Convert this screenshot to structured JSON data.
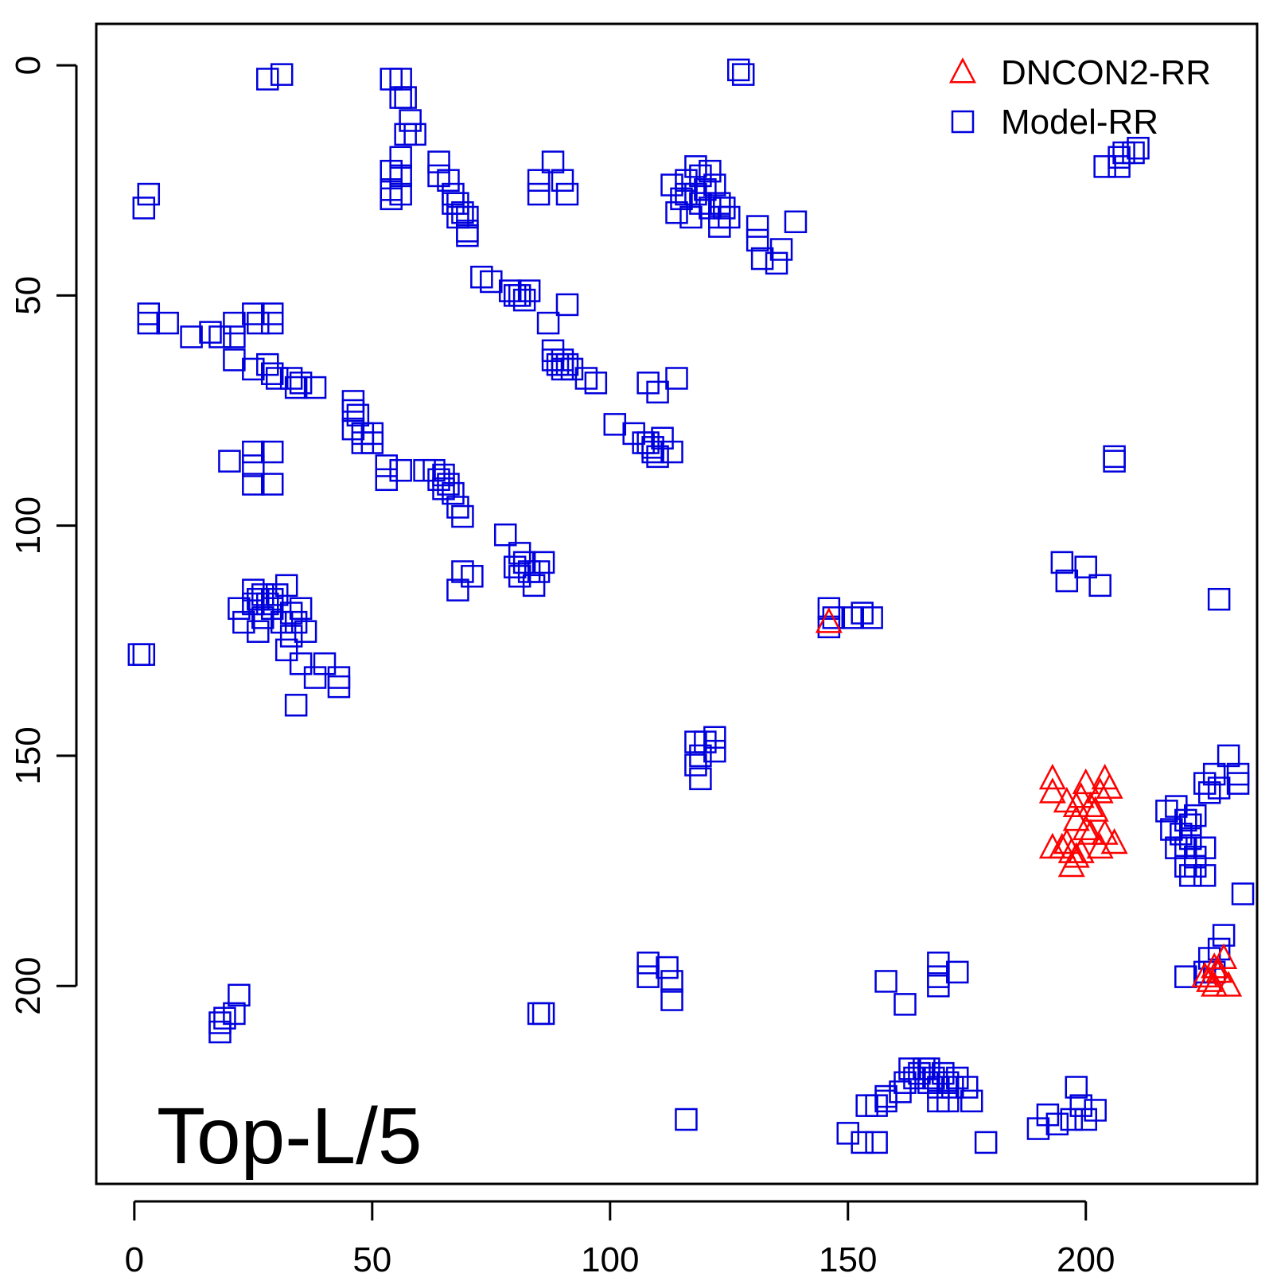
{
  "chart_data": {
    "type": "scatter",
    "title": "",
    "xlabel": "",
    "ylabel": "",
    "xlim": [
      -8,
      236
    ],
    "ylim": [
      -9,
      243
    ],
    "y_axis_reversed": true,
    "x_ticks": [
      0,
      50,
      100,
      150,
      200
    ],
    "y_ticks": [
      0,
      50,
      100,
      150,
      200
    ],
    "grid": false,
    "legend_position": "top-right",
    "panel_label": "Top-L/5",
    "series": [
      {
        "name": "DNCON2-RR",
        "marker": "triangle",
        "color": "#ff0000",
        "points": [
          [
            146,
            121
          ],
          [
            193,
            155
          ],
          [
            193,
            158
          ],
          [
            200,
            156
          ],
          [
            201,
            161
          ],
          [
            203,
            158
          ],
          [
            204,
            155
          ],
          [
            205,
            157
          ],
          [
            196,
            160
          ],
          [
            198,
            161
          ],
          [
            199,
            159
          ],
          [
            202,
            162
          ],
          [
            198,
            164
          ],
          [
            200,
            166
          ],
          [
            204,
            167
          ],
          [
            203,
            170
          ],
          [
            206,
            169
          ],
          [
            193,
            170
          ],
          [
            195,
            170
          ],
          [
            196,
            169
          ],
          [
            197,
            171
          ],
          [
            198,
            172
          ],
          [
            197,
            174
          ],
          [
            199,
            171
          ],
          [
            201,
            167
          ],
          [
            225,
            198
          ],
          [
            226,
            199
          ],
          [
            227,
            196
          ],
          [
            227,
            200
          ],
          [
            228,
            197
          ],
          [
            229,
            194
          ],
          [
            230,
            200
          ]
        ]
      },
      {
        "name": "Model-RR",
        "marker": "square",
        "color": "#0000dd",
        "points": [
          [
            28,
            3
          ],
          [
            31,
            2
          ],
          [
            54,
            3
          ],
          [
            56,
            3
          ],
          [
            56,
            7
          ],
          [
            57,
            7
          ],
          [
            58,
            12
          ],
          [
            59,
            15
          ],
          [
            57,
            15
          ],
          [
            56,
            20
          ],
          [
            54,
            23
          ],
          [
            54,
            27
          ],
          [
            56,
            24
          ],
          [
            56,
            28
          ],
          [
            54,
            29
          ],
          [
            64,
            21
          ],
          [
            64,
            24
          ],
          [
            66,
            25
          ],
          [
            67,
            28
          ],
          [
            67,
            30
          ],
          [
            68,
            30
          ],
          [
            69,
            32
          ],
          [
            68,
            33
          ],
          [
            70,
            33
          ],
          [
            70,
            36
          ],
          [
            70,
            37
          ],
          [
            2,
            31
          ],
          [
            3,
            28
          ],
          [
            127,
            1
          ],
          [
            128,
            2
          ],
          [
            88,
            21
          ],
          [
            85,
            25
          ],
          [
            90,
            25
          ],
          [
            85,
            28
          ],
          [
            91,
            28
          ],
          [
            113,
            26
          ],
          [
            116,
            25
          ],
          [
            118,
            22
          ],
          [
            119,
            24
          ],
          [
            121,
            23
          ],
          [
            116,
            28
          ],
          [
            118,
            28
          ],
          [
            120,
            27
          ],
          [
            122,
            26
          ],
          [
            123,
            30
          ],
          [
            119,
            30
          ],
          [
            115,
            29
          ],
          [
            114,
            32
          ],
          [
            117,
            33
          ],
          [
            121,
            31
          ],
          [
            123,
            33
          ],
          [
            125,
            33
          ],
          [
            124,
            31
          ],
          [
            123,
            35
          ],
          [
            131,
            35
          ],
          [
            131,
            38
          ],
          [
            139,
            34
          ],
          [
            132,
            42
          ],
          [
            135,
            43
          ],
          [
            136,
            40
          ],
          [
            3,
            54
          ],
          [
            3,
            56
          ],
          [
            7,
            56
          ],
          [
            12,
            59
          ],
          [
            16,
            58
          ],
          [
            18,
            59
          ],
          [
            21,
            56
          ],
          [
            21,
            59
          ],
          [
            25,
            54
          ],
          [
            26,
            56
          ],
          [
            29,
            54
          ],
          [
            29,
            56
          ],
          [
            21,
            64
          ],
          [
            25,
            66
          ],
          [
            28,
            65
          ],
          [
            29,
            67
          ],
          [
            30,
            68
          ],
          [
            33,
            68
          ],
          [
            35,
            69
          ],
          [
            34,
            70
          ],
          [
            38,
            70
          ],
          [
            46,
            75
          ],
          [
            46,
            73
          ],
          [
            47,
            76
          ],
          [
            46,
            79
          ],
          [
            48,
            80
          ],
          [
            50,
            80
          ],
          [
            48,
            82
          ],
          [
            50,
            82
          ],
          [
            53,
            87
          ],
          [
            56,
            88
          ],
          [
            53,
            90
          ],
          [
            61,
            88
          ],
          [
            63,
            88
          ],
          [
            64,
            90
          ],
          [
            65,
            89
          ],
          [
            65,
            92
          ],
          [
            66,
            91
          ],
          [
            67,
            93
          ],
          [
            68,
            96
          ],
          [
            69,
            98
          ],
          [
            73,
            46
          ],
          [
            75,
            47
          ],
          [
            79,
            49
          ],
          [
            80,
            50
          ],
          [
            81,
            50
          ],
          [
            82,
            51
          ],
          [
            83,
            49
          ],
          [
            87,
            56
          ],
          [
            91,
            52
          ],
          [
            88,
            62
          ],
          [
            88,
            64
          ],
          [
            89,
            65
          ],
          [
            90,
            64
          ],
          [
            91,
            65
          ],
          [
            90,
            66
          ],
          [
            92,
            66
          ],
          [
            95,
            68
          ],
          [
            97,
            69
          ],
          [
            101,
            78
          ],
          [
            105,
            80
          ],
          [
            107,
            82
          ],
          [
            108,
            82
          ],
          [
            109,
            83
          ],
          [
            109,
            84
          ],
          [
            111,
            81
          ],
          [
            110,
            85
          ],
          [
            113,
            84
          ],
          [
            108,
            69
          ],
          [
            110,
            71
          ],
          [
            114,
            68
          ],
          [
            78,
            102
          ],
          [
            81,
            106
          ],
          [
            80,
            109
          ],
          [
            81,
            111
          ],
          [
            82,
            108
          ],
          [
            83,
            110
          ],
          [
            84,
            113
          ],
          [
            85,
            110
          ],
          [
            86,
            108
          ],
          [
            69,
            110
          ],
          [
            71,
            111
          ],
          [
            68,
            114
          ],
          [
            25,
            114
          ],
          [
            26,
            116
          ],
          [
            27,
            115
          ],
          [
            28,
            117
          ],
          [
            29,
            116
          ],
          [
            27,
            120
          ],
          [
            29,
            118
          ],
          [
            30,
            115
          ],
          [
            32,
            113
          ],
          [
            33,
            119
          ],
          [
            34,
            121
          ],
          [
            31,
            121
          ],
          [
            33,
            124
          ],
          [
            32,
            127
          ],
          [
            35,
            118
          ],
          [
            36,
            123
          ],
          [
            35,
            130
          ],
          [
            38,
            133
          ],
          [
            40,
            130
          ],
          [
            43,
            133
          ],
          [
            43,
            135
          ],
          [
            34,
            139
          ],
          [
            25,
            117
          ],
          [
            22,
            118
          ],
          [
            23,
            121
          ],
          [
            26,
            123
          ],
          [
            20,
            86
          ],
          [
            25,
            84
          ],
          [
            29,
            84
          ],
          [
            25,
            87
          ],
          [
            25,
            91
          ],
          [
            29,
            91
          ],
          [
            2,
            128
          ],
          [
            1,
            128
          ],
          [
            206,
            85
          ],
          [
            206,
            86
          ],
          [
            207,
            22
          ],
          [
            208,
            19
          ],
          [
            210,
            19
          ],
          [
            211,
            18
          ],
          [
            204,
            22
          ],
          [
            207,
            20
          ],
          [
            195,
            108
          ],
          [
            196,
            112
          ],
          [
            200,
            109
          ],
          [
            203,
            113
          ],
          [
            228,
            116
          ],
          [
            146,
            118
          ],
          [
            147,
            120
          ],
          [
            151,
            120
          ],
          [
            153,
            119
          ],
          [
            155,
            120
          ],
          [
            146,
            122
          ],
          [
            118,
            147
          ],
          [
            120,
            147
          ],
          [
            122,
            146
          ],
          [
            122,
            149
          ],
          [
            119,
            150
          ],
          [
            118,
            152
          ],
          [
            119,
            155
          ],
          [
            217,
            162
          ],
          [
            219,
            161
          ],
          [
            221,
            164
          ],
          [
            218,
            166
          ],
          [
            220,
            167
          ],
          [
            222,
            165
          ],
          [
            223,
            163
          ],
          [
            219,
            170
          ],
          [
            221,
            170
          ],
          [
            222,
            168
          ],
          [
            223,
            172
          ],
          [
            225,
            170
          ],
          [
            221,
            174
          ],
          [
            223,
            174
          ],
          [
            225,
            176
          ],
          [
            222,
            176
          ],
          [
            225,
            156
          ],
          [
            226,
            158
          ],
          [
            227,
            154
          ],
          [
            228,
            157
          ],
          [
            230,
            150
          ],
          [
            232,
            154
          ],
          [
            232,
            156
          ],
          [
            233,
            180
          ],
          [
            229,
            189
          ],
          [
            228,
            192
          ],
          [
            226,
            194
          ],
          [
            225,
            197
          ],
          [
            227,
            197
          ],
          [
            221,
            198
          ],
          [
            108,
            195
          ],
          [
            108,
            198
          ],
          [
            112,
            196
          ],
          [
            113,
            199
          ],
          [
            113,
            203
          ],
          [
            85,
            206
          ],
          [
            86,
            206
          ],
          [
            22,
            202
          ],
          [
            21,
            206
          ],
          [
            19,
            207
          ],
          [
            18,
            208
          ],
          [
            18,
            210
          ],
          [
            158,
            199
          ],
          [
            162,
            204
          ],
          [
            169,
            195
          ],
          [
            169,
            198
          ],
          [
            169,
            200
          ],
          [
            173,
            197
          ],
          [
            116,
            229
          ],
          [
            154,
            226
          ],
          [
            156,
            226
          ],
          [
            158,
            225
          ],
          [
            158,
            224
          ],
          [
            161,
            223
          ],
          [
            162,
            221
          ],
          [
            163,
            218
          ],
          [
            164,
            220
          ],
          [
            165,
            219
          ],
          [
            166,
            218
          ],
          [
            167,
            218
          ],
          [
            167,
            221
          ],
          [
            168,
            220
          ],
          [
            169,
            222
          ],
          [
            170,
            219
          ],
          [
            171,
            221
          ],
          [
            172,
            222
          ],
          [
            173,
            220
          ],
          [
            175,
            222
          ],
          [
            176,
            225
          ],
          [
            150,
            232
          ],
          [
            153,
            234
          ],
          [
            156,
            234
          ],
          [
            179,
            234
          ],
          [
            169,
            225
          ],
          [
            171,
            225
          ],
          [
            190,
            231
          ],
          [
            192,
            228
          ],
          [
            194,
            230
          ],
          [
            197,
            229
          ],
          [
            198,
            222
          ],
          [
            199,
            226
          ],
          [
            200,
            229
          ],
          [
            202,
            227
          ]
        ]
      }
    ]
  }
}
